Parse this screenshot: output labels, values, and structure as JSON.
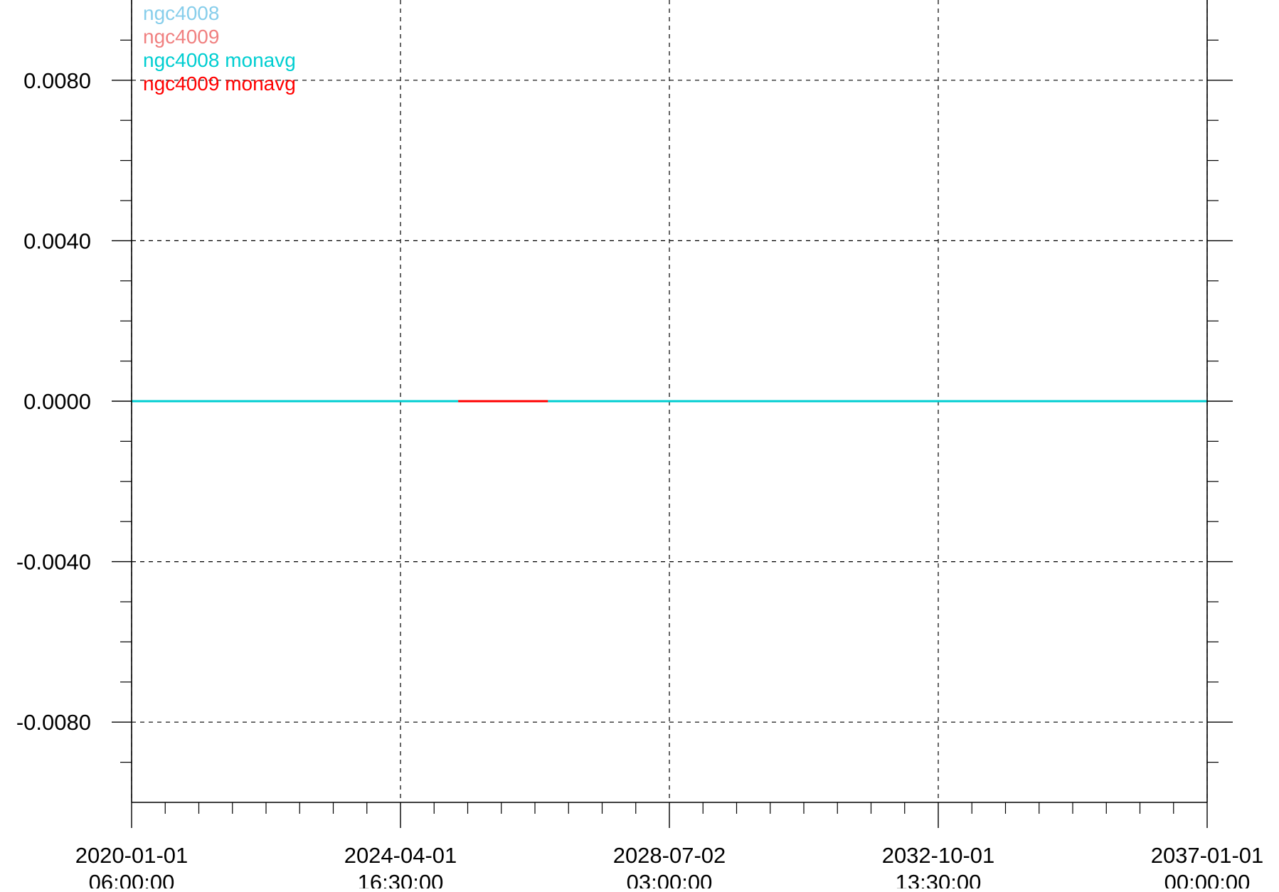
{
  "chart_data": {
    "type": "line",
    "title": "",
    "xlabel": "",
    "ylabel": "",
    "grid": true,
    "legend_placement": "top-left",
    "x_axis": {
      "kind": "date",
      "range": [
        "2020-01-01 06:00:00",
        "2037-01-01 00:00:00"
      ],
      "ticks": [
        {
          "date": "2020-01-01 06:00:00",
          "label": [
            "2020-01-01",
            "06:00:00"
          ]
        },
        {
          "date": "2024-04-01 16:30:00",
          "label": [
            "2024-04-01",
            "16:30:00"
          ]
        },
        {
          "date": "2028-07-02 03:00:00",
          "label": [
            "2028-07-02",
            "03:00:00"
          ]
        },
        {
          "date": "2032-10-01 13:30:00",
          "label": [
            "2032-10-01",
            "13:30:00"
          ]
        },
        {
          "date": "2037-01-01 00:00:00",
          "label": [
            "2037-01-01",
            "00:00:00"
          ]
        }
      ]
    },
    "y_axis": {
      "range": [
        -0.01,
        0.01
      ],
      "ticks": [
        {
          "value": 0.008,
          "label": "0.0080"
        },
        {
          "value": 0.004,
          "label": "0.0040"
        },
        {
          "value": 0.0,
          "label": "0.0000"
        },
        {
          "value": -0.004,
          "label": "-0.0040"
        },
        {
          "value": -0.008,
          "label": "-0.0080"
        }
      ]
    },
    "series": [
      {
        "name": "ngc4008",
        "color": "#87ceeb",
        "x": [
          "2020-01-01 06:00:00",
          "2037-01-01 00:00:00"
        ],
        "y": [
          0.0,
          0.0
        ]
      },
      {
        "name": "ngc4009",
        "color": "#f08080",
        "x": [
          "2020-01-01 06:00:00",
          "2037-01-01 00:00:00"
        ],
        "y": [
          0.0,
          0.0
        ]
      },
      {
        "name": "ngc4008 monavg",
        "color": "#00ced1",
        "x": [
          "2020-01-01 06:00:00",
          "2025-03-01 00:00:00"
        ],
        "y": [
          0.0,
          0.0
        ]
      },
      {
        "name": "ngc4009 monavg",
        "color": "#ff0000",
        "x": [
          "2025-03-01 00:00:00",
          "2026-08-01 00:00:00"
        ],
        "y": [
          0.0,
          0.0
        ]
      },
      {
        "name": "ngc4008 monavg",
        "color": "#00ced1",
        "x": [
          "2026-08-01 00:00:00",
          "2037-01-01 00:00:00"
        ],
        "y": [
          0.0,
          0.0
        ],
        "legend": false
      }
    ]
  }
}
